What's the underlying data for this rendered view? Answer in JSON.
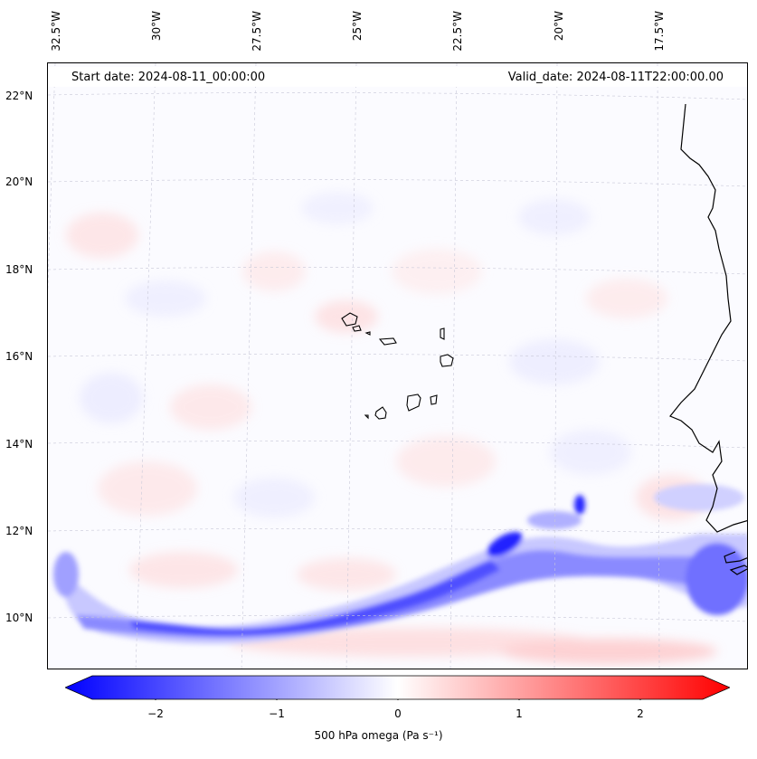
{
  "map": {
    "start_date": "Start date: 2024-08-11_00:00:00",
    "valid_date": "Valid_date: 2024-08-11T22:00:00.00",
    "variable": "500 hPa omega",
    "units": "Pa s⁻¹",
    "colormap": "bwr",
    "colors": {
      "negative": "#0000ff",
      "zero": "#ffffff",
      "positive": "#ff0000",
      "coastline": "#000000"
    },
    "lon_labels": [
      "32.5°W",
      "30°W",
      "27.5°W",
      "25°W",
      "22.5°W",
      "20°W",
      "17.5°W"
    ],
    "lat_labels": [
      "22°N",
      "20°N",
      "18°N",
      "16°N",
      "14°N",
      "12°N",
      "10°N"
    ],
    "extent": {
      "lon": [
        -32.5,
        -16.5
      ],
      "lat": [
        9,
        22.5
      ]
    }
  },
  "colorbar": {
    "ticks": [
      "−2",
      "−1",
      "0",
      "1",
      "2"
    ],
    "range": [
      -2.6,
      2.6
    ],
    "extend": "both",
    "label_text": "500 hPa omega (Pa s⁻¹)"
  }
}
